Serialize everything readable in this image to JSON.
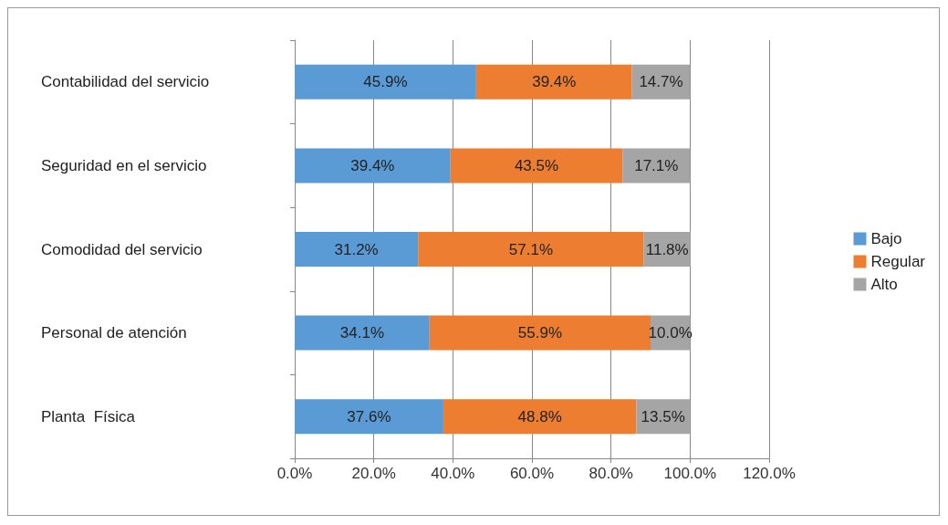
{
  "chart_data": {
    "type": "bar",
    "orientation": "horizontal",
    "stacked": true,
    "categories": [
      "Contabilidad del servicio",
      "Seguridad en el servicio",
      "Comodidad del servicio",
      "Personal de atención",
      "Planta  Física"
    ],
    "series": [
      {
        "name": "Bajo",
        "color": "#5b9bd5",
        "values": [
          45.9,
          39.4,
          31.2,
          34.1,
          37.6
        ],
        "value_labels": [
          "45.9%",
          "39.4%",
          "31.2%",
          "34.1%",
          "37.6%"
        ]
      },
      {
        "name": "Regular",
        "color": "#ed7d31",
        "values": [
          39.4,
          43.5,
          57.1,
          55.9,
          48.8
        ],
        "value_labels": [
          "39.4%",
          "43.5%",
          "57.1%",
          "55.9%",
          "48.8%"
        ]
      },
      {
        "name": "Alto",
        "color": "#a5a5a5",
        "values": [
          14.7,
          17.1,
          11.8,
          10.0,
          13.5
        ],
        "value_labels": [
          "14.7%",
          "17.1%",
          "11.8%",
          "10.0%",
          "13.5%"
        ]
      }
    ],
    "xlim": [
      0,
      120
    ],
    "xticks": [
      {
        "value": 0,
        "label": "0.0%"
      },
      {
        "value": 20,
        "label": "20.0%"
      },
      {
        "value": 40,
        "label": "40.0%"
      },
      {
        "value": 60,
        "label": "60.0%"
      },
      {
        "value": 80,
        "label": "80.0%"
      },
      {
        "value": 100,
        "label": "100.0%"
      },
      {
        "value": 120,
        "label": "120.0%"
      }
    ],
    "grid": "x",
    "legend": "right"
  }
}
